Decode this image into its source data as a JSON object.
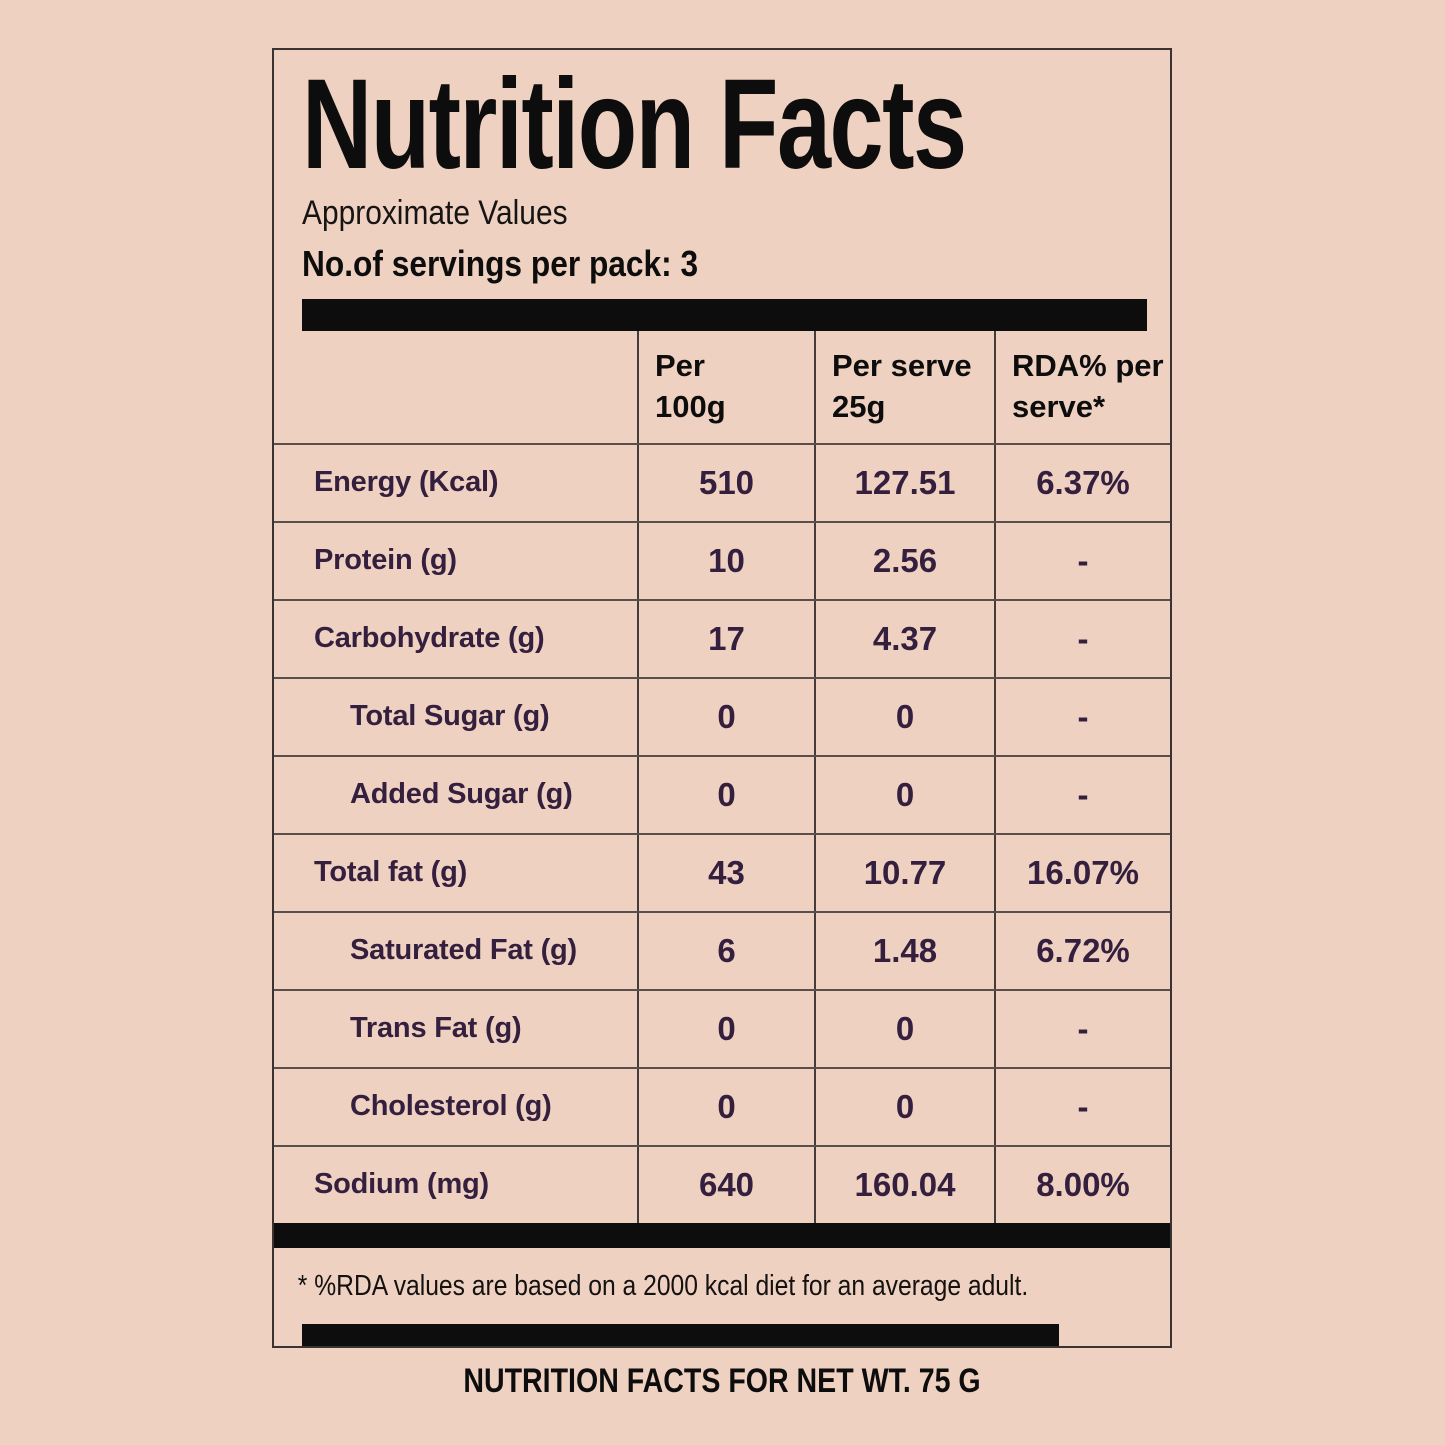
{
  "colors": {
    "background": "#EFD1C1",
    "ink_black": "#0E0D0D",
    "ink_purple": "#34203E",
    "box_border": "#3A3330",
    "vline": "#453C39",
    "hline": "#5A4F4A"
  },
  "label": {
    "title": "Nutrition Facts",
    "subtitle": "Approximate Values",
    "servings_line": "No.of servings per pack: 3",
    "columns": [
      "",
      "Per\n100g",
      "Per serve\n25g",
      "RDA% per\nserve*"
    ],
    "rows": [
      {
        "name": "Energy (Kcal)",
        "indent": false,
        "per_100g": "510",
        "per_serve": "127.51",
        "rda": "6.37%"
      },
      {
        "name": "Protein (g)",
        "indent": false,
        "per_100g": "10",
        "per_serve": "2.56",
        "rda": "-"
      },
      {
        "name": "Carbohydrate (g)",
        "indent": false,
        "per_100g": "17",
        "per_serve": "4.37",
        "rda": "-"
      },
      {
        "name": "Total Sugar (g)",
        "indent": true,
        "per_100g": "0",
        "per_serve": "0",
        "rda": "-"
      },
      {
        "name": "Added Sugar (g)",
        "indent": true,
        "per_100g": "0",
        "per_serve": "0",
        "rda": "-"
      },
      {
        "name": "Total fat (g)",
        "indent": false,
        "per_100g": "43",
        "per_serve": "10.77",
        "rda": "16.07%"
      },
      {
        "name": "Saturated Fat (g)",
        "indent": true,
        "per_100g": "6",
        "per_serve": "1.48",
        "rda": "6.72%"
      },
      {
        "name": "Trans Fat (g)",
        "indent": true,
        "per_100g": "0",
        "per_serve": "0",
        "rda": "-"
      },
      {
        "name": "Cholesterol (g)",
        "indent": true,
        "per_100g": "0",
        "per_serve": "0",
        "rda": "-"
      },
      {
        "name": "Sodium (mg)",
        "indent": false,
        "per_100g": "640",
        "per_serve": "160.04",
        "rda": "8.00%"
      }
    ],
    "footnote": "* %RDA values are based on a 2000 kcal diet for an average adult.",
    "caption": "NUTRITION FACTS FOR NET WT. 75 G"
  }
}
